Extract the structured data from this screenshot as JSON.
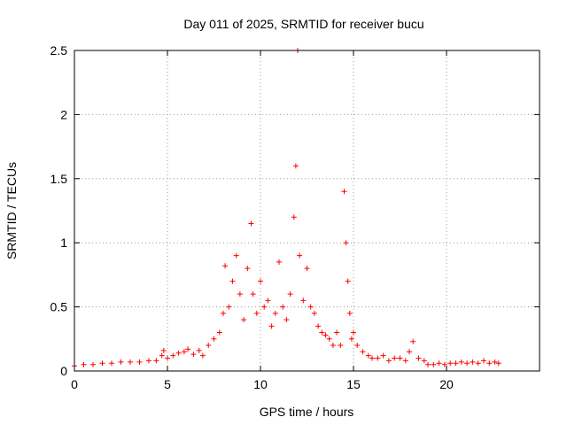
{
  "chart_data": {
    "type": "scatter",
    "title": "Day 011 of 2025, SRMTID for receiver bucu",
    "xlabel": "GPS time / hours",
    "ylabel": "SRMTID / TECUs",
    "xlim": [
      0,
      25
    ],
    "ylim": [
      0,
      2.5
    ],
    "x_ticks": [
      "0",
      "5",
      "10",
      "15",
      "20"
    ],
    "x_tick_values": [
      0,
      5,
      10,
      15,
      20
    ],
    "y_ticks": [
      "0",
      "0.5",
      "1",
      "1.5",
      "2",
      "2.5"
    ],
    "y_tick_values": [
      0,
      0.5,
      1,
      1.5,
      2,
      2.5
    ],
    "grid": true,
    "marker": "+",
    "colors": {
      "series": "#ff0000",
      "grid": "#999999",
      "axes": "#000000"
    },
    "series": [
      {
        "name": "SRMTID",
        "x": [
          0.0,
          0.5,
          1.0,
          1.5,
          2.0,
          2.5,
          3.0,
          3.5,
          4.0,
          4.4,
          4.7,
          4.8,
          5.0,
          5.3,
          5.6,
          5.9,
          6.1,
          6.4,
          6.7,
          6.9,
          7.2,
          7.5,
          7.8,
          8.0,
          8.1,
          8.3,
          8.5,
          8.7,
          8.9,
          9.1,
          9.3,
          9.5,
          9.6,
          9.8,
          10.0,
          10.2,
          10.4,
          10.6,
          10.8,
          11.0,
          11.2,
          11.4,
          11.6,
          11.8,
          11.9,
          12.0,
          12.1,
          12.3,
          12.5,
          12.7,
          12.9,
          13.1,
          13.3,
          13.5,
          13.7,
          13.9,
          14.1,
          14.3,
          14.5,
          14.6,
          14.7,
          14.8,
          14.9,
          15.0,
          15.2,
          15.5,
          15.8,
          16.0,
          16.3,
          16.6,
          16.9,
          17.2,
          17.5,
          17.8,
          18.0,
          18.2,
          18.5,
          18.8,
          19.0,
          19.3,
          19.6,
          19.9,
          20.2,
          20.5,
          20.8,
          21.1,
          21.4,
          21.7,
          22.0,
          22.3,
          22.6,
          22.8
        ],
        "y": [
          0.04,
          0.05,
          0.05,
          0.06,
          0.06,
          0.07,
          0.07,
          0.07,
          0.08,
          0.08,
          0.12,
          0.16,
          0.1,
          0.12,
          0.14,
          0.15,
          0.17,
          0.13,
          0.16,
          0.12,
          0.2,
          0.25,
          0.3,
          0.45,
          0.82,
          0.5,
          0.7,
          0.9,
          0.6,
          0.4,
          0.8,
          1.15,
          0.6,
          0.45,
          0.7,
          0.5,
          0.55,
          0.35,
          0.45,
          0.85,
          0.5,
          0.4,
          0.6,
          1.2,
          1.6,
          2.5,
          0.9,
          0.55,
          0.8,
          0.5,
          0.45,
          0.35,
          0.3,
          0.28,
          0.25,
          0.2,
          0.3,
          0.2,
          1.4,
          1.0,
          0.7,
          0.45,
          0.25,
          0.3,
          0.2,
          0.15,
          0.12,
          0.1,
          0.1,
          0.12,
          0.08,
          0.1,
          0.1,
          0.08,
          0.15,
          0.23,
          0.1,
          0.08,
          0.05,
          0.05,
          0.06,
          0.05,
          0.06,
          0.06,
          0.07,
          0.06,
          0.07,
          0.06,
          0.08,
          0.06,
          0.07,
          0.06
        ]
      }
    ]
  }
}
